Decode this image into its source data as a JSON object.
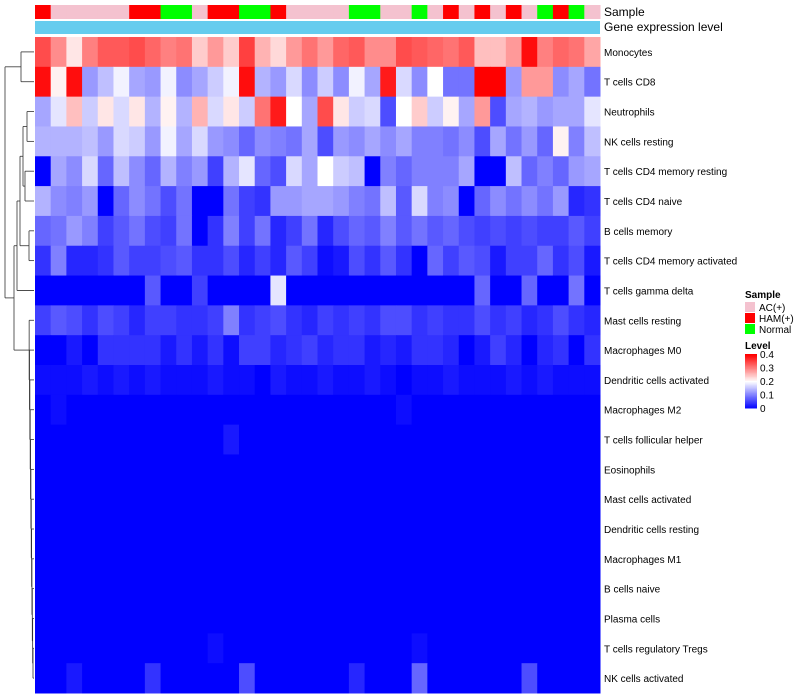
{
  "chart_data": {
    "type": "heatmap",
    "annotation_labels": {
      "sample": "Sample",
      "expression": "Gene expression level"
    },
    "sample_groups": [
      "HAM(+)",
      "AC(+)",
      "AC(+)",
      "AC(+)",
      "AC(+)",
      "AC(+)",
      "HAM(+)",
      "HAM(+)",
      "Normal",
      "Normal",
      "AC(+)",
      "HAM(+)",
      "HAM(+)",
      "Normal",
      "Normal",
      "HAM(+)",
      "AC(+)",
      "AC(+)",
      "AC(+)",
      "AC(+)",
      "Normal",
      "Normal",
      "AC(+)",
      "AC(+)",
      "Normal",
      "AC(+)",
      "HAM(+)",
      "AC(+)",
      "HAM(+)",
      "AC(+)",
      "HAM(+)",
      "AC(+)",
      "Normal",
      "HAM(+)",
      "Normal",
      "AC(+)"
    ],
    "sample_colors": {
      "AC(+)": "#F4C2CF",
      "HAM(+)": "#FF0000",
      "Normal": "#00FF00"
    },
    "expression_bar_color": "#66CCEE",
    "rows": [
      "Monocytes",
      "T cells CD8",
      "Neutrophils",
      "NK cells resting",
      "T cells CD4 memory resting",
      "T cells CD4 naive",
      "B cells memory",
      "T cells CD4 memory activated",
      "T cells gamma delta",
      "Mast cells resting",
      "Macrophages M0",
      "Dendritic cells activated",
      "Macrophages M2",
      "T cells follicular helper",
      "Eosinophils",
      "Mast cells activated",
      "Dendritic cells resting",
      "Macrophages M1",
      "B cells naive",
      "Plasma cells",
      "T cells regulatory  Tregs",
      "NK cells activated"
    ],
    "values": [
      [
        0.34,
        0.29,
        0.22,
        0.3,
        0.33,
        0.33,
        0.34,
        0.32,
        0.3,
        0.31,
        0.24,
        0.28,
        0.24,
        0.35,
        0.26,
        0.23,
        0.28,
        0.31,
        0.28,
        0.32,
        0.33,
        0.29,
        0.29,
        0.34,
        0.33,
        0.32,
        0.31,
        0.33,
        0.25,
        0.25,
        0.28,
        0.39,
        0.3,
        0.32,
        0.31,
        0.27
      ],
      [
        0.39,
        0.21,
        0.39,
        0.12,
        0.15,
        0.19,
        0.13,
        0.12,
        0.19,
        0.11,
        0.13,
        0.16,
        0.19,
        0.39,
        0.14,
        0.12,
        0.17,
        0.11,
        0.16,
        0.11,
        0.19,
        0.13,
        0.38,
        0.17,
        0.11,
        0.2,
        0.09,
        0.09,
        0.4,
        0.4,
        0.12,
        0.28,
        0.28,
        0.11,
        0.13,
        0.09
      ],
      [
        0.13,
        0.18,
        0.25,
        0.16,
        0.22,
        0.17,
        0.22,
        0.14,
        0.21,
        0.14,
        0.26,
        0.17,
        0.22,
        0.16,
        0.31,
        0.38,
        0.2,
        0.13,
        0.34,
        0.22,
        0.16,
        0.17,
        0.06,
        0.2,
        0.24,
        0.16,
        0.21,
        0.13,
        0.28,
        0.06,
        0.13,
        0.14,
        0.12,
        0.13,
        0.13,
        0.18
      ],
      [
        0.14,
        0.14,
        0.14,
        0.15,
        0.12,
        0.17,
        0.16,
        0.12,
        0.19,
        0.13,
        0.17,
        0.12,
        0.11,
        0.08,
        0.11,
        0.1,
        0.09,
        0.13,
        0.06,
        0.12,
        0.11,
        0.13,
        0.11,
        0.13,
        0.1,
        0.1,
        0.09,
        0.11,
        0.06,
        0.13,
        0.09,
        0.12,
        0.08,
        0.21,
        0.1,
        0.15
      ],
      [
        0.0,
        0.13,
        0.11,
        0.17,
        0.08,
        0.15,
        0.11,
        0.08,
        0.14,
        0.1,
        0.12,
        0.05,
        0.14,
        0.18,
        0.08,
        0.06,
        0.17,
        0.13,
        0.2,
        0.16,
        0.15,
        0.0,
        0.1,
        0.08,
        0.1,
        0.1,
        0.1,
        0.13,
        0.0,
        0.0,
        0.15,
        0.08,
        0.1,
        0.08,
        0.12,
        0.13
      ],
      [
        0.14,
        0.11,
        0.1,
        0.12,
        0.0,
        0.08,
        0.11,
        0.09,
        0.06,
        0.09,
        0.0,
        0.0,
        0.09,
        0.05,
        0.04,
        0.12,
        0.12,
        0.13,
        0.13,
        0.12,
        0.1,
        0.09,
        0.15,
        0.07,
        0.17,
        0.1,
        0.11,
        0.0,
        0.08,
        0.11,
        0.09,
        0.11,
        0.09,
        0.12,
        0.03,
        0.04
      ],
      [
        0.08,
        0.09,
        0.12,
        0.1,
        0.05,
        0.07,
        0.09,
        0.06,
        0.05,
        0.09,
        0.0,
        0.04,
        0.1,
        0.05,
        0.09,
        0.03,
        0.05,
        0.09,
        0.03,
        0.06,
        0.08,
        0.07,
        0.1,
        0.07,
        0.09,
        0.07,
        0.08,
        0.06,
        0.05,
        0.06,
        0.05,
        0.06,
        0.05,
        0.05,
        0.07,
        0.05
      ],
      [
        0.04,
        0.1,
        0.03,
        0.03,
        0.04,
        0.07,
        0.05,
        0.05,
        0.06,
        0.07,
        0.04,
        0.04,
        0.06,
        0.03,
        0.05,
        0.03,
        0.07,
        0.05,
        0.01,
        0.02,
        0.06,
        0.04,
        0.07,
        0.04,
        0.0,
        0.08,
        0.05,
        0.07,
        0.06,
        0.02,
        0.05,
        0.05,
        0.08,
        0.04,
        0.06,
        0.02
      ],
      [
        0.0,
        0.0,
        0.0,
        0.0,
        0.0,
        0.0,
        0.0,
        0.07,
        0.0,
        0.0,
        0.05,
        0.0,
        0.0,
        0.0,
        0.0,
        0.18,
        0.0,
        0.0,
        0.0,
        0.0,
        0.0,
        0.0,
        0.0,
        0.0,
        0.0,
        0.0,
        0.0,
        0.0,
        0.08,
        0.0,
        0.0,
        0.08,
        0.0,
        0.0,
        0.09,
        0.0
      ],
      [
        0.05,
        0.07,
        0.06,
        0.04,
        0.06,
        0.05,
        0.03,
        0.05,
        0.05,
        0.04,
        0.04,
        0.05,
        0.1,
        0.04,
        0.05,
        0.06,
        0.04,
        0.03,
        0.05,
        0.04,
        0.05,
        0.04,
        0.06,
        0.06,
        0.04,
        0.05,
        0.04,
        0.04,
        0.06,
        0.04,
        0.05,
        0.03,
        0.04,
        0.06,
        0.04,
        0.03
      ],
      [
        0.0,
        0.0,
        0.02,
        0.0,
        0.04,
        0.04,
        0.04,
        0.04,
        0.02,
        0.04,
        0.02,
        0.04,
        0.01,
        0.05,
        0.05,
        0.03,
        0.04,
        0.05,
        0.03,
        0.04,
        0.04,
        0.02,
        0.03,
        0.02,
        0.04,
        0.04,
        0.03,
        0.0,
        0.02,
        0.05,
        0.03,
        0.0,
        0.03,
        0.04,
        0.0,
        0.04
      ],
      [
        0.01,
        0.01,
        0.01,
        0.02,
        0.01,
        0.02,
        0.01,
        0.02,
        0.01,
        0.01,
        0.01,
        0.02,
        0.01,
        0.01,
        0.0,
        0.02,
        0.01,
        0.01,
        0.02,
        0.01,
        0.01,
        0.02,
        0.01,
        0.0,
        0.01,
        0.01,
        0.02,
        0.01,
        0.01,
        0.01,
        0.02,
        0.01,
        0.02,
        0.01,
        0.01,
        0.01
      ],
      [
        0.0,
        0.01,
        0.0,
        0.0,
        0.0,
        0.0,
        0.0,
        0.0,
        0.0,
        0.0,
        0.0,
        0.0,
        0.0,
        0.0,
        0.0,
        0.0,
        0.0,
        0.0,
        0.0,
        0.0,
        0.0,
        0.0,
        0.0,
        0.01,
        0.0,
        0.0,
        0.0,
        0.0,
        0.0,
        0.0,
        0.0,
        0.0,
        0.0,
        0.0,
        0.0,
        0.0
      ],
      [
        0.0,
        0.0,
        0.0,
        0.0,
        0.0,
        0.0,
        0.0,
        0.0,
        0.0,
        0.0,
        0.0,
        0.0,
        0.02,
        0.0,
        0.0,
        0.0,
        0.0,
        0.0,
        0.0,
        0.0,
        0.0,
        0.0,
        0.0,
        0.0,
        0.0,
        0.0,
        0.0,
        0.0,
        0.0,
        0.0,
        0.0,
        0.0,
        0.0,
        0.0,
        0.0,
        0.0
      ],
      [
        0.0,
        0.0,
        0.0,
        0.0,
        0.0,
        0.0,
        0.0,
        0.0,
        0.0,
        0.0,
        0.0,
        0.0,
        0.0,
        0.0,
        0.0,
        0.0,
        0.0,
        0.0,
        0.0,
        0.0,
        0.0,
        0.0,
        0.0,
        0.0,
        0.0,
        0.0,
        0.0,
        0.0,
        0.0,
        0.0,
        0.0,
        0.0,
        0.0,
        0.0,
        0.0,
        0.0
      ],
      [
        0.0,
        0.0,
        0.0,
        0.0,
        0.0,
        0.0,
        0.0,
        0.0,
        0.0,
        0.0,
        0.0,
        0.0,
        0.0,
        0.0,
        0.0,
        0.0,
        0.0,
        0.0,
        0.0,
        0.0,
        0.0,
        0.0,
        0.0,
        0.0,
        0.0,
        0.0,
        0.0,
        0.0,
        0.0,
        0.0,
        0.0,
        0.0,
        0.0,
        0.0,
        0.0,
        0.0
      ],
      [
        0.0,
        0.0,
        0.0,
        0.0,
        0.0,
        0.0,
        0.0,
        0.0,
        0.0,
        0.0,
        0.0,
        0.0,
        0.0,
        0.0,
        0.0,
        0.0,
        0.0,
        0.0,
        0.0,
        0.0,
        0.0,
        0.0,
        0.0,
        0.0,
        0.0,
        0.0,
        0.0,
        0.0,
        0.0,
        0.0,
        0.0,
        0.0,
        0.0,
        0.0,
        0.0,
        0.0
      ],
      [
        0.0,
        0.0,
        0.0,
        0.0,
        0.0,
        0.0,
        0.0,
        0.0,
        0.0,
        0.0,
        0.0,
        0.0,
        0.0,
        0.0,
        0.0,
        0.0,
        0.0,
        0.0,
        0.0,
        0.0,
        0.0,
        0.0,
        0.0,
        0.0,
        0.0,
        0.0,
        0.0,
        0.0,
        0.0,
        0.0,
        0.0,
        0.0,
        0.0,
        0.0,
        0.0,
        0.0
      ],
      [
        0.0,
        0.0,
        0.0,
        0.0,
        0.0,
        0.0,
        0.0,
        0.0,
        0.0,
        0.0,
        0.0,
        0.0,
        0.0,
        0.0,
        0.0,
        0.0,
        0.0,
        0.0,
        0.0,
        0.0,
        0.0,
        0.0,
        0.0,
        0.0,
        0.0,
        0.0,
        0.0,
        0.0,
        0.0,
        0.0,
        0.0,
        0.0,
        0.0,
        0.0,
        0.0,
        0.0
      ],
      [
        0.0,
        0.0,
        0.0,
        0.0,
        0.0,
        0.0,
        0.0,
        0.0,
        0.0,
        0.0,
        0.0,
        0.0,
        0.0,
        0.0,
        0.0,
        0.0,
        0.0,
        0.0,
        0.0,
        0.0,
        0.0,
        0.0,
        0.0,
        0.0,
        0.0,
        0.0,
        0.0,
        0.0,
        0.0,
        0.0,
        0.0,
        0.0,
        0.0,
        0.0,
        0.0,
        0.0
      ],
      [
        0.0,
        0.0,
        0.0,
        0.0,
        0.0,
        0.0,
        0.0,
        0.0,
        0.0,
        0.0,
        0.0,
        0.01,
        0.0,
        0.0,
        0.0,
        0.0,
        0.0,
        0.0,
        0.0,
        0.0,
        0.0,
        0.0,
        0.0,
        0.0,
        0.01,
        0.0,
        0.0,
        0.0,
        0.0,
        0.0,
        0.0,
        0.0,
        0.0,
        0.0,
        0.0,
        0.0
      ],
      [
        0.0,
        0.0,
        0.02,
        0.0,
        0.0,
        0.0,
        0.0,
        0.04,
        0.0,
        0.0,
        0.0,
        0.0,
        0.0,
        0.06,
        0.0,
        0.0,
        0.0,
        0.0,
        0.0,
        0.0,
        0.03,
        0.0,
        0.0,
        0.0,
        0.08,
        0.0,
        0.0,
        0.0,
        0.0,
        0.0,
        0.0,
        0.06,
        0.0,
        0.0,
        0.0,
        0.0
      ]
    ],
    "color_scale": {
      "min": 0,
      "max": 0.4,
      "low": "#0000FF",
      "mid": "#FFFFFF",
      "high": "#FF0000",
      "midpoint": 0.2
    },
    "legend": {
      "sample_title": "Sample",
      "level_title": "Level",
      "level_ticks": [
        "0.4",
        "0.3",
        "0.2",
        "0.1",
        "0"
      ],
      "level_tick_values": [
        0.4,
        0.3,
        0.2,
        0.1,
        0
      ]
    },
    "dendrogram": "rows clustered (hierarchical)"
  }
}
